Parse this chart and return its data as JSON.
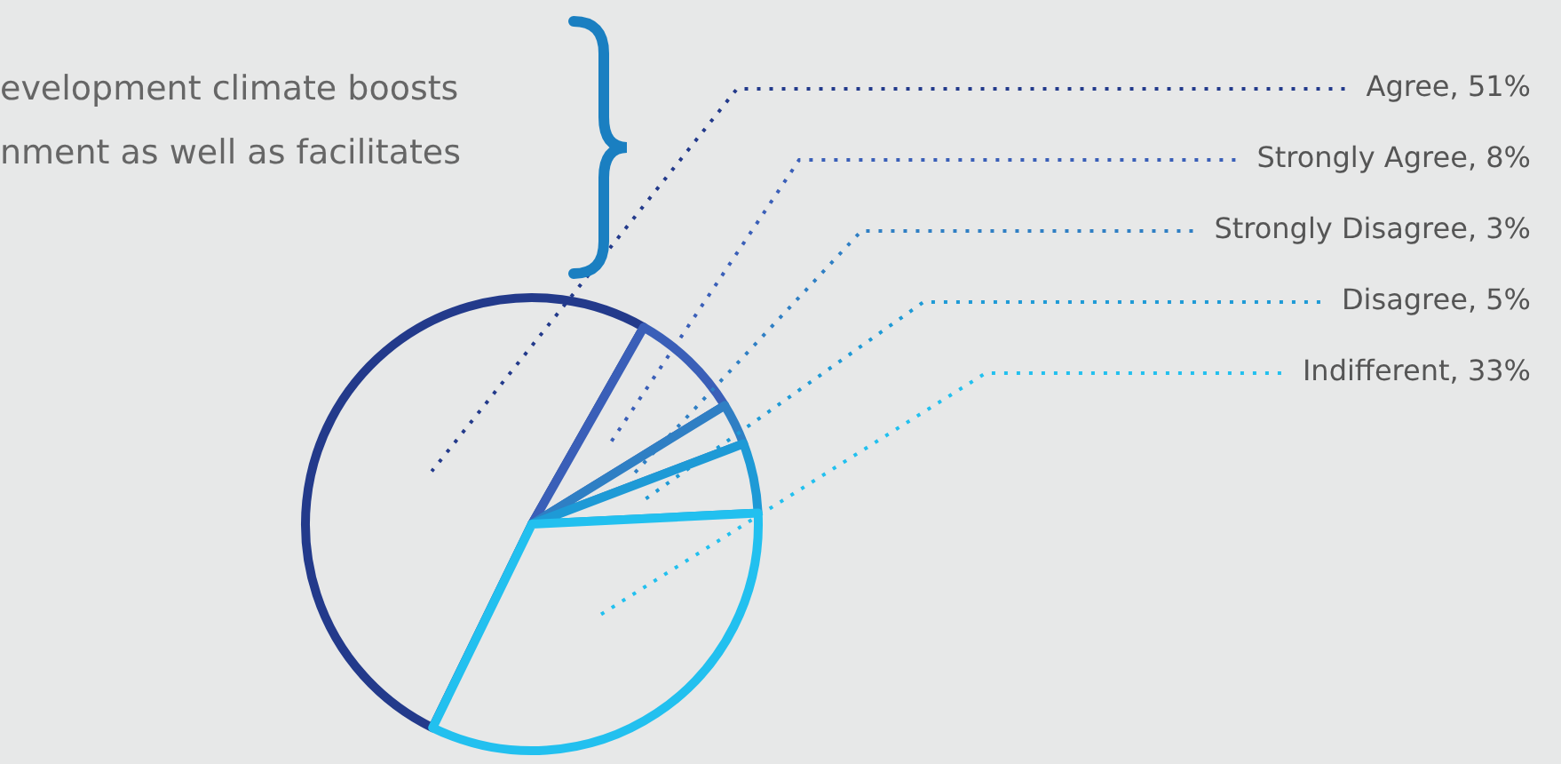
{
  "chart_data": {
    "type": "pie",
    "annotations": [
      "evelopment climate boosts",
      "nment as well as facilitates"
    ],
    "categories": [
      "Agree",
      "Strongly Agree",
      "Strongly Disagree",
      "Disagree",
      "Indifferent"
    ],
    "values": [
      51,
      8,
      3,
      5,
      33
    ],
    "value_labels": [
      "51%",
      "8%",
      "3%",
      "5%",
      "33%"
    ],
    "colors": [
      "#233a8b",
      "#3a5fb8",
      "#2f7fc4",
      "#1e9ad6",
      "#22c0ef"
    ],
    "legend": false
  }
}
